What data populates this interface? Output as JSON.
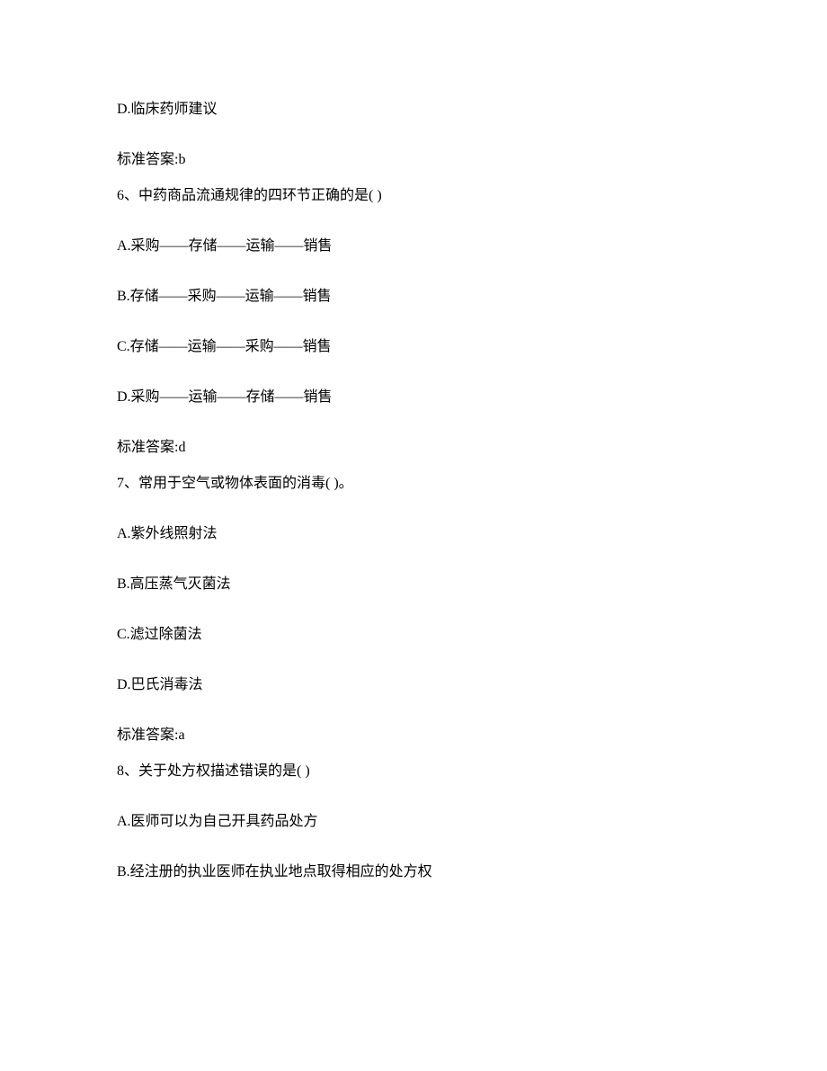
{
  "document": {
    "font_family": "SimSun",
    "font_size": 16,
    "text_color": "#000000",
    "background_color": "#ffffff",
    "line_spacing": 32,
    "lines": [
      {
        "text": "D.临床药师建议",
        "type": "option"
      },
      {
        "text": "标准答案:b",
        "type": "answer"
      },
      {
        "text": "6、中药商品流通规律的四环节正确的是( )",
        "type": "question"
      },
      {
        "text": "A.采购——存储——运输——销售",
        "type": "option"
      },
      {
        "text": "B.存储——采购——运输——销售",
        "type": "option"
      },
      {
        "text": "C.存储——运输——采购——销售",
        "type": "option"
      },
      {
        "text": "D.采购——运输——存储——销售",
        "type": "option"
      },
      {
        "text": "标准答案:d",
        "type": "answer"
      },
      {
        "text": "7、常用于空气或物体表面的消毒( )。",
        "type": "question"
      },
      {
        "text": "A.紫外线照射法",
        "type": "option"
      },
      {
        "text": "B.高压蒸气灭菌法",
        "type": "option"
      },
      {
        "text": "C.滤过除菌法",
        "type": "option"
      },
      {
        "text": "D.巴氏消毒法",
        "type": "option"
      },
      {
        "text": "标准答案:a",
        "type": "answer"
      },
      {
        "text": "8、关于处方权描述错误的是( )",
        "type": "question"
      },
      {
        "text": "A.医师可以为自己开具药品处方",
        "type": "option"
      },
      {
        "text": "B.经注册的执业医师在执业地点取得相应的处方权",
        "type": "option"
      }
    ]
  }
}
